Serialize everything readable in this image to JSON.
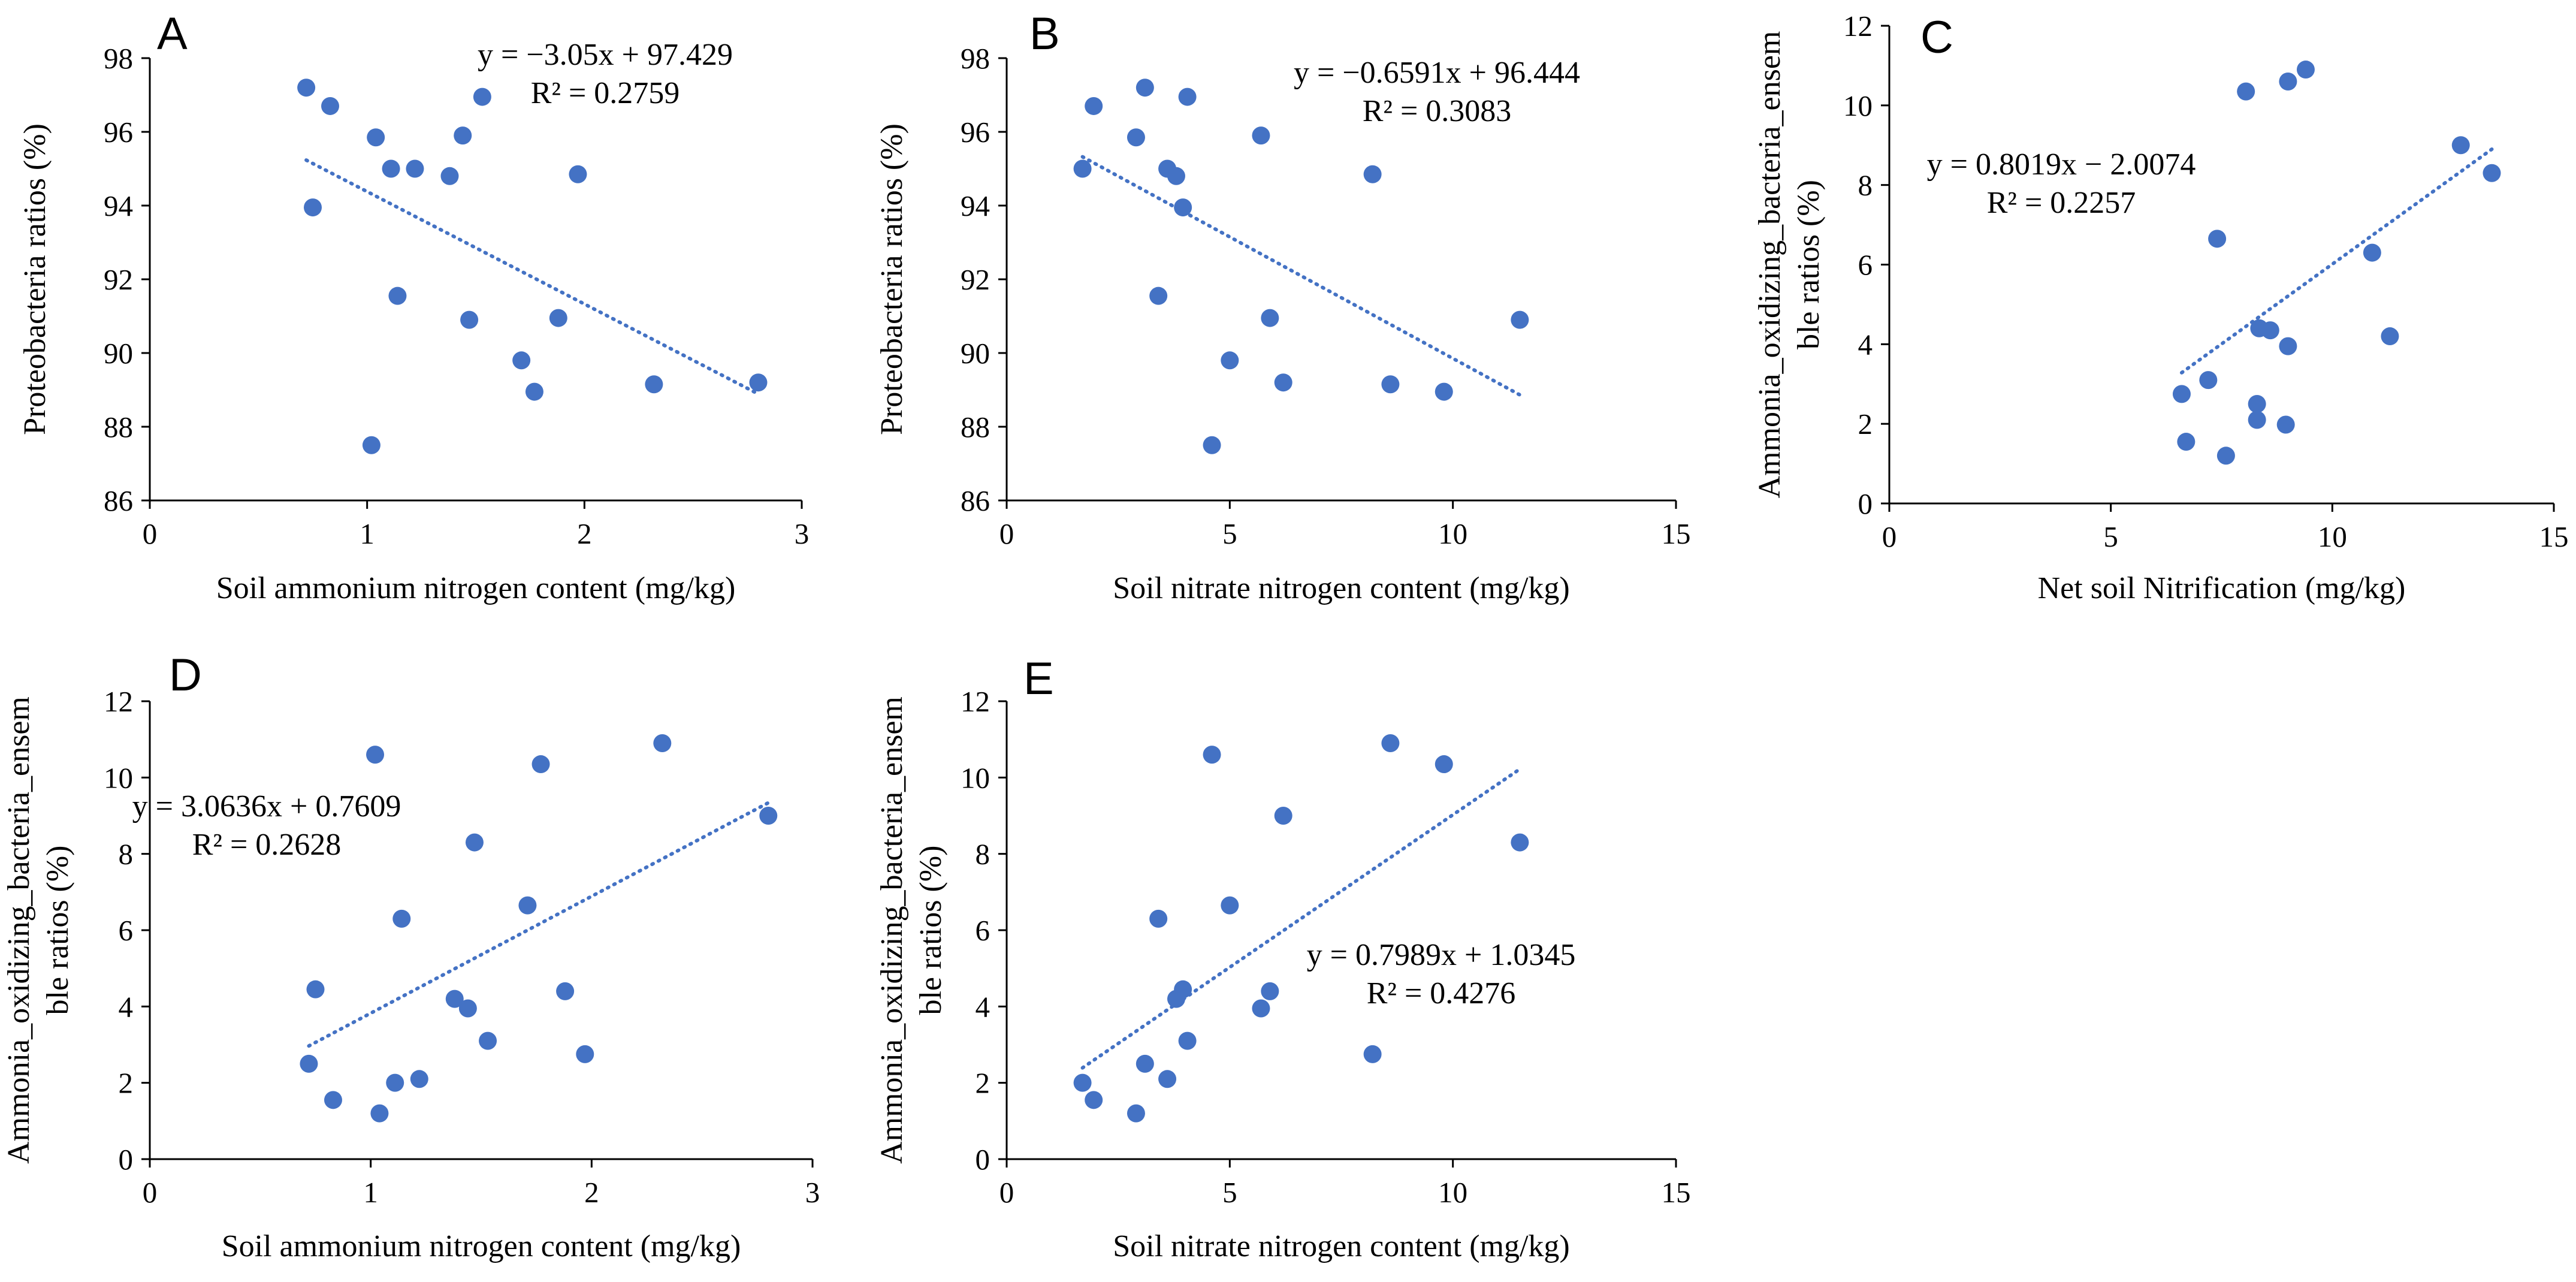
{
  "colors": {
    "marker": "#4472C4",
    "trendline": "#4472C4",
    "axis": "#000000"
  },
  "chart_data": [
    {
      "type": "scatter",
      "panel_label": "A",
      "title": "",
      "xlabel": "Soil ammonium nitrogen content (mg/kg)",
      "ylabel": "Proteobacteria ratios (%)",
      "xlim": [
        0,
        3
      ],
      "ylim": [
        86,
        98
      ],
      "xticks": [
        0,
        1,
        2,
        3
      ],
      "xtick_labels": [
        "0",
        "1",
        "2",
        "3"
      ],
      "yticks": [
        86,
        88,
        90,
        92,
        94,
        96,
        98
      ],
      "ytick_labels": [
        "86",
        "88",
        "90",
        "92",
        "94",
        "96",
        "98"
      ],
      "x": [
        0.72,
        0.75,
        0.83,
        1.02,
        1.04,
        1.11,
        1.14,
        1.22,
        1.38,
        1.44,
        1.47,
        1.53,
        1.71,
        1.77,
        1.88,
        1.97,
        2.32,
        2.8
      ],
      "y": [
        97.2,
        93.95,
        96.7,
        87.5,
        95.85,
        95.0,
        91.55,
        95.0,
        94.8,
        95.9,
        90.9,
        96.95,
        89.8,
        88.95,
        90.95,
        94.85,
        89.15,
        89.2
      ],
      "trendline": {
        "slope": -3.05,
        "intercept": 97.429,
        "x_range": [
          0.72,
          2.8
        ]
      },
      "equation": "y = −3.05x + 97.429",
      "r_squared": "R² = 0.2759"
    },
    {
      "type": "scatter",
      "panel_label": "B",
      "title": "",
      "xlabel": "Soil nitrate nitrogen content (mg/kg)",
      "ylabel": "Proteobacteria ratios (%)",
      "xlim": [
        0,
        15
      ],
      "ylim": [
        86,
        98
      ],
      "xticks": [
        0,
        5,
        10,
        15
      ],
      "xtick_labels": [
        "0",
        "5",
        "10",
        "15"
      ],
      "yticks": [
        86,
        88,
        90,
        92,
        94,
        96,
        98
      ],
      "ytick_labels": [
        "86",
        "88",
        "90",
        "92",
        "94",
        "96",
        "98"
      ],
      "x": [
        1.7,
        1.95,
        2.9,
        3.1,
        3.4,
        3.6,
        3.8,
        3.95,
        4.05,
        4.6,
        5.0,
        5.7,
        5.9,
        6.2,
        8.2,
        8.6,
        9.8,
        11.5
      ],
      "y": [
        95.0,
        96.7,
        95.85,
        97.2,
        91.55,
        95.0,
        94.8,
        93.95,
        96.95,
        87.5,
        89.8,
        95.9,
        90.95,
        89.2,
        94.85,
        89.15,
        88.95,
        90.9
      ],
      "trendline": {
        "slope": -0.6591,
        "intercept": 96.444,
        "x_range": [
          1.7,
          11.5
        ]
      },
      "equation": "y = −0.6591x + 96.444",
      "r_squared": "R² = 0.3083"
    },
    {
      "type": "scatter",
      "panel_label": "C",
      "title": "",
      "xlabel": "Net soil Nitrification (mg/kg)",
      "ylabel": [
        "Ammonia_oxidizing_bacteria_ensem",
        "ble ratios (%)"
      ],
      "xlim": [
        0,
        15
      ],
      "ylim": [
        0,
        12
      ],
      "xticks": [
        0,
        5,
        10,
        15
      ],
      "xtick_labels": [
        "0",
        "5",
        "10",
        "15"
      ],
      "yticks": [
        0,
        2,
        4,
        6,
        8,
        10,
        12
      ],
      "ytick_labels": [
        "0",
        "2",
        "4",
        "6",
        "8",
        "10",
        "12"
      ],
      "x": [
        6.6,
        6.7,
        7.2,
        7.4,
        7.6,
        8.05,
        8.3,
        8.3,
        8.35,
        8.6,
        8.95,
        9.0,
        9.0,
        9.4,
        10.9,
        11.3,
        12.9,
        13.6
      ],
      "y": [
        2.75,
        1.55,
        3.1,
        6.65,
        1.2,
        10.35,
        2.1,
        2.5,
        4.4,
        4.35,
        1.98,
        3.95,
        10.6,
        10.9,
        6.3,
        4.2,
        9.0,
        8.3
      ],
      "trendline": {
        "slope": 0.8019,
        "intercept": -2.0074,
        "x_range": [
          6.6,
          13.6
        ]
      },
      "equation": "y = 0.8019x − 2.0074",
      "r_squared": "R² = 0.2257"
    },
    {
      "type": "scatter",
      "panel_label": "D",
      "title": "",
      "xlabel": "Soil ammonium nitrogen content (mg/kg)",
      "ylabel": [
        "Ammonia_oxidizing_bacteria_ensem",
        "ble ratios (%)"
      ],
      "xlim": [
        0,
        3
      ],
      "ylim": [
        0,
        12
      ],
      "xticks": [
        0,
        1,
        2,
        3
      ],
      "xtick_labels": [
        "0",
        "1",
        "2",
        "3"
      ],
      "yticks": [
        0,
        2,
        4,
        6,
        8,
        10,
        12
      ],
      "ytick_labels": [
        "0",
        "2",
        "4",
        "6",
        "8",
        "10",
        "12"
      ],
      "x": [
        0.72,
        0.75,
        0.83,
        1.02,
        1.04,
        1.11,
        1.14,
        1.22,
        1.38,
        1.44,
        1.47,
        1.53,
        1.71,
        1.77,
        1.88,
        1.97,
        2.32,
        2.8
      ],
      "y": [
        2.5,
        4.45,
        1.55,
        10.6,
        1.2,
        2.0,
        6.3,
        2.1,
        4.2,
        3.95,
        8.3,
        3.1,
        6.65,
        10.35,
        4.4,
        2.75,
        10.9,
        9.0
      ],
      "trendline": {
        "slope": 3.0636,
        "intercept": 0.7609,
        "x_range": [
          0.72,
          2.8
        ]
      },
      "equation": "y = 3.0636x + 0.7609",
      "r_squared": "R² = 0.2628"
    },
    {
      "type": "scatter",
      "panel_label": "E",
      "title": "",
      "xlabel": "Soil nitrate nitrogen content (mg/kg)",
      "ylabel": [
        "Ammonia_oxidizing_bacteria_ensem",
        "ble ratios (%)"
      ],
      "xlim": [
        0,
        15
      ],
      "ylim": [
        0,
        12
      ],
      "xticks": [
        0,
        5,
        10,
        15
      ],
      "xtick_labels": [
        "0",
        "5",
        "10",
        "15"
      ],
      "yticks": [
        0,
        2,
        4,
        6,
        8,
        10,
        12
      ],
      "ytick_labels": [
        "0",
        "2",
        "4",
        "6",
        "8",
        "10",
        "12"
      ],
      "x": [
        1.7,
        1.95,
        2.9,
        3.1,
        3.4,
        3.6,
        3.8,
        3.95,
        4.05,
        4.6,
        5.0,
        5.7,
        5.9,
        6.2,
        8.2,
        8.6,
        9.8,
        11.5
      ],
      "y": [
        2.0,
        1.55,
        1.2,
        2.5,
        6.3,
        2.1,
        4.2,
        4.45,
        3.1,
        10.6,
        6.65,
        3.95,
        4.4,
        9.0,
        2.75,
        10.9,
        10.35,
        8.3
      ],
      "trendline": {
        "slope": 0.7989,
        "intercept": 1.0345,
        "x_range": [
          1.7,
          11.5
        ]
      },
      "equation": "y = 0.7989x + 1.0345",
      "r_squared": "R² = 0.4276"
    }
  ]
}
